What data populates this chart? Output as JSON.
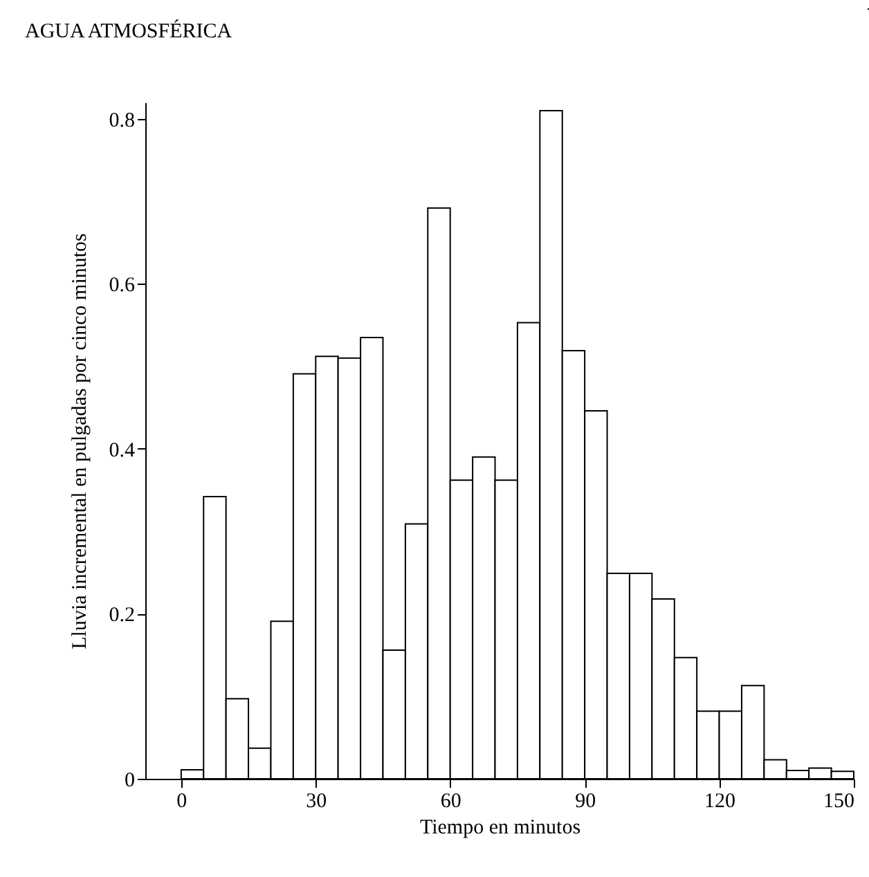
{
  "chart_data": {
    "type": "histogram",
    "title": "AGUA  ATMOSFÉRICA",
    "xlabel": "Tiempo en minutos",
    "ylabel": "Lluvia incremental en pulgadas por cinco minutos",
    "bins": [
      0,
      5,
      10,
      15,
      20,
      25,
      30,
      35,
      40,
      45,
      50,
      55,
      60,
      65,
      70,
      75,
      80,
      85,
      90,
      95,
      100,
      105,
      110,
      115,
      120,
      125,
      130,
      135,
      140,
      145,
      150
    ],
    "values": [
      0.011,
      0.342,
      0.097,
      0.037,
      0.191,
      0.491,
      0.512,
      0.51,
      0.535,
      0.156,
      0.309,
      0.692,
      0.362,
      0.39,
      0.362,
      0.553,
      0.81,
      0.519,
      0.446,
      0.249,
      0.249,
      0.218,
      0.147,
      0.082,
      0.082,
      0.113,
      0.023,
      0.01,
      0.013,
      0.009
    ],
    "color": "#ffffff",
    "xlim": [
      -8,
      150
    ],
    "xticks": [
      0,
      30,
      60,
      90,
      120,
      150
    ],
    "ylim": [
      0,
      0.82
    ],
    "yticks": [
      {
        "value": 0,
        "label": "0"
      },
      0.2,
      0.4,
      0.6,
      0.8
    ]
  }
}
